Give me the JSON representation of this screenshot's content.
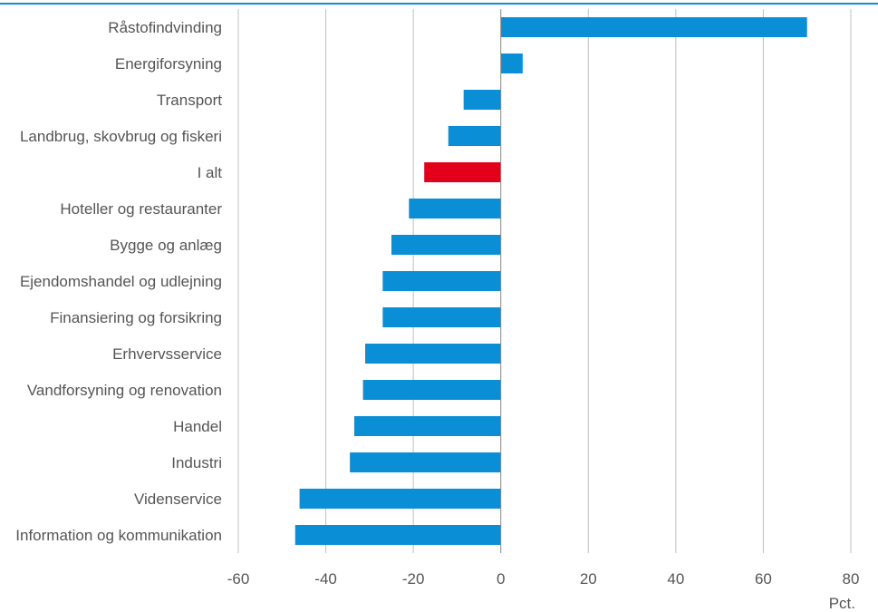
{
  "chart_data": {
    "type": "bar",
    "orientation": "horizontal",
    "categories": [
      "Råstofindvinding",
      "Energiforsyning",
      "Transport",
      "Landbrug, skovbrug og fiskeri",
      "I alt",
      "Hoteller og restauranter",
      "Bygge og anlæg",
      "Ejendomshandel og udlejning",
      "Finansiering og forsikring",
      "Erhvervsservice",
      "Vandforsyning og renovation",
      "Handel",
      "Industri",
      "Videnservice",
      "Information og kommunikation"
    ],
    "values": [
      70,
      5,
      -8.5,
      -12,
      -17.5,
      -21,
      -25,
      -27,
      -27,
      -31,
      -31.5,
      -33.5,
      -34.5,
      -46,
      -47
    ],
    "xlim": [
      -60,
      80
    ],
    "xticks": [
      -60,
      -40,
      -20,
      0,
      20,
      40,
      60,
      80
    ],
    "xlabel": "Pct.",
    "grid": true,
    "colors": {
      "bar": "#0a8fd6",
      "highlight": "#e2001a",
      "highlight_category": "I alt",
      "grid": "#c0c0c0",
      "axis": "#888888",
      "top_rule": "#0a8fd6"
    }
  }
}
